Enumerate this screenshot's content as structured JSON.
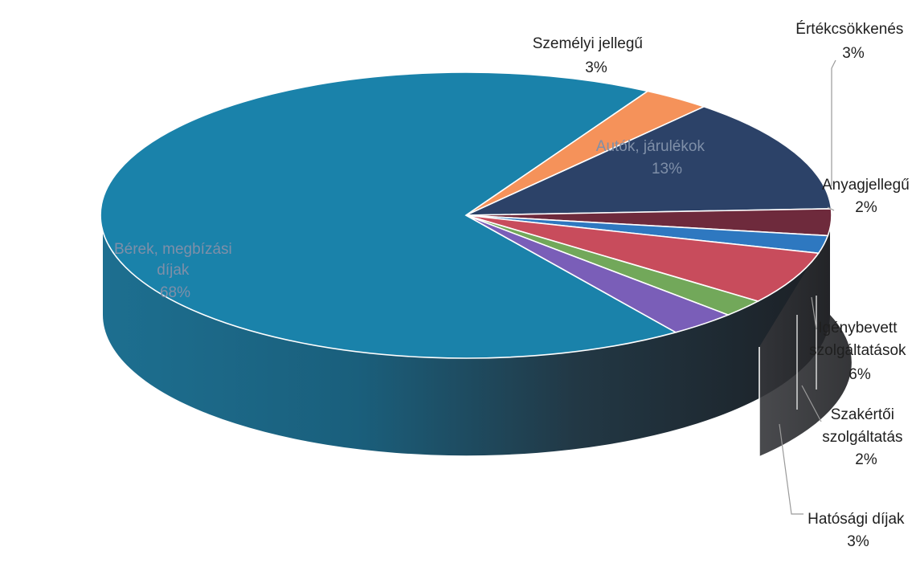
{
  "chart_data": {
    "type": "pie",
    "title": "",
    "slices": [
      {
        "label": "Bérek, megbízási díjak",
        "label_lines": [
          "Bérek, megbízási",
          "díjak"
        ],
        "percent_text": "68%",
        "value": 68,
        "color": "#1a82aa"
      },
      {
        "label": "Személyi jellegű",
        "label_lines": [
          "Személyi jellegű"
        ],
        "percent_text": "3%",
        "value": 3,
        "color": "#f5925a"
      },
      {
        "label": "Autók, járulékok",
        "label_lines": [
          "Autók, járulékok"
        ],
        "percent_text": "13%",
        "value": 13,
        "color": "#2c4268"
      },
      {
        "label": "Értékcsökkenés",
        "label_lines": [
          "Értékcsökkenés"
        ],
        "percent_text": "3%",
        "value": 3,
        "color": "#6e2a3c"
      },
      {
        "label": "Anyagjellegű",
        "label_lines": [
          "Anyagjellegű"
        ],
        "percent_text": "2%",
        "value": 2,
        "color": "#2e78c0"
      },
      {
        "label": "Igénybevett szolgáltatások",
        "label_lines": [
          "Igénybevett",
          "szolgáltatások"
        ],
        "percent_text": "6%",
        "value": 6,
        "color": "#c84c5c"
      },
      {
        "label": "Szakértői szolgáltatás",
        "label_lines": [
          "Szakértői",
          "szolgáltatás"
        ],
        "percent_text": "2%",
        "value": 2,
        "color": "#72a85a"
      },
      {
        "label": "Hatósági díjak",
        "label_lines": [
          "Hatósági díjak"
        ],
        "percent_text": "3%",
        "value": 3,
        "color": "#7a5eb8"
      }
    ],
    "legend": "none"
  }
}
